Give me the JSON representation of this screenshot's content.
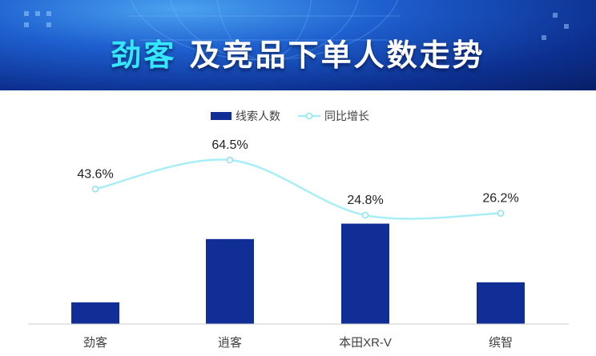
{
  "header": {
    "title_highlight": "劲客",
    "title_rest": "及竞品下单人数走势"
  },
  "colors": {
    "bar": "#102e96",
    "line": "#a8eef7",
    "line_marker_stroke": "#8de3f0",
    "axis": "#cccccc",
    "banner_dark": "#0c2f8f",
    "title_highlight": "#35e6ff"
  },
  "chart_data": {
    "type": "bar",
    "categories": [
      "劲客",
      "逍客",
      "本田XR-V",
      "缤智"
    ],
    "series": [
      {
        "name": "线索人数",
        "type": "bar",
        "values": [
          14,
          55,
          65,
          27
        ]
      },
      {
        "name": "同比增长",
        "type": "line",
        "values": [
          43.6,
          64.5,
          24.8,
          26.2
        ],
        "labels": [
          "43.6%",
          "64.5%",
          "24.8%",
          "26.2%"
        ]
      }
    ],
    "legend_position": "top-center",
    "y_axis_visible": false,
    "grid": false
  }
}
